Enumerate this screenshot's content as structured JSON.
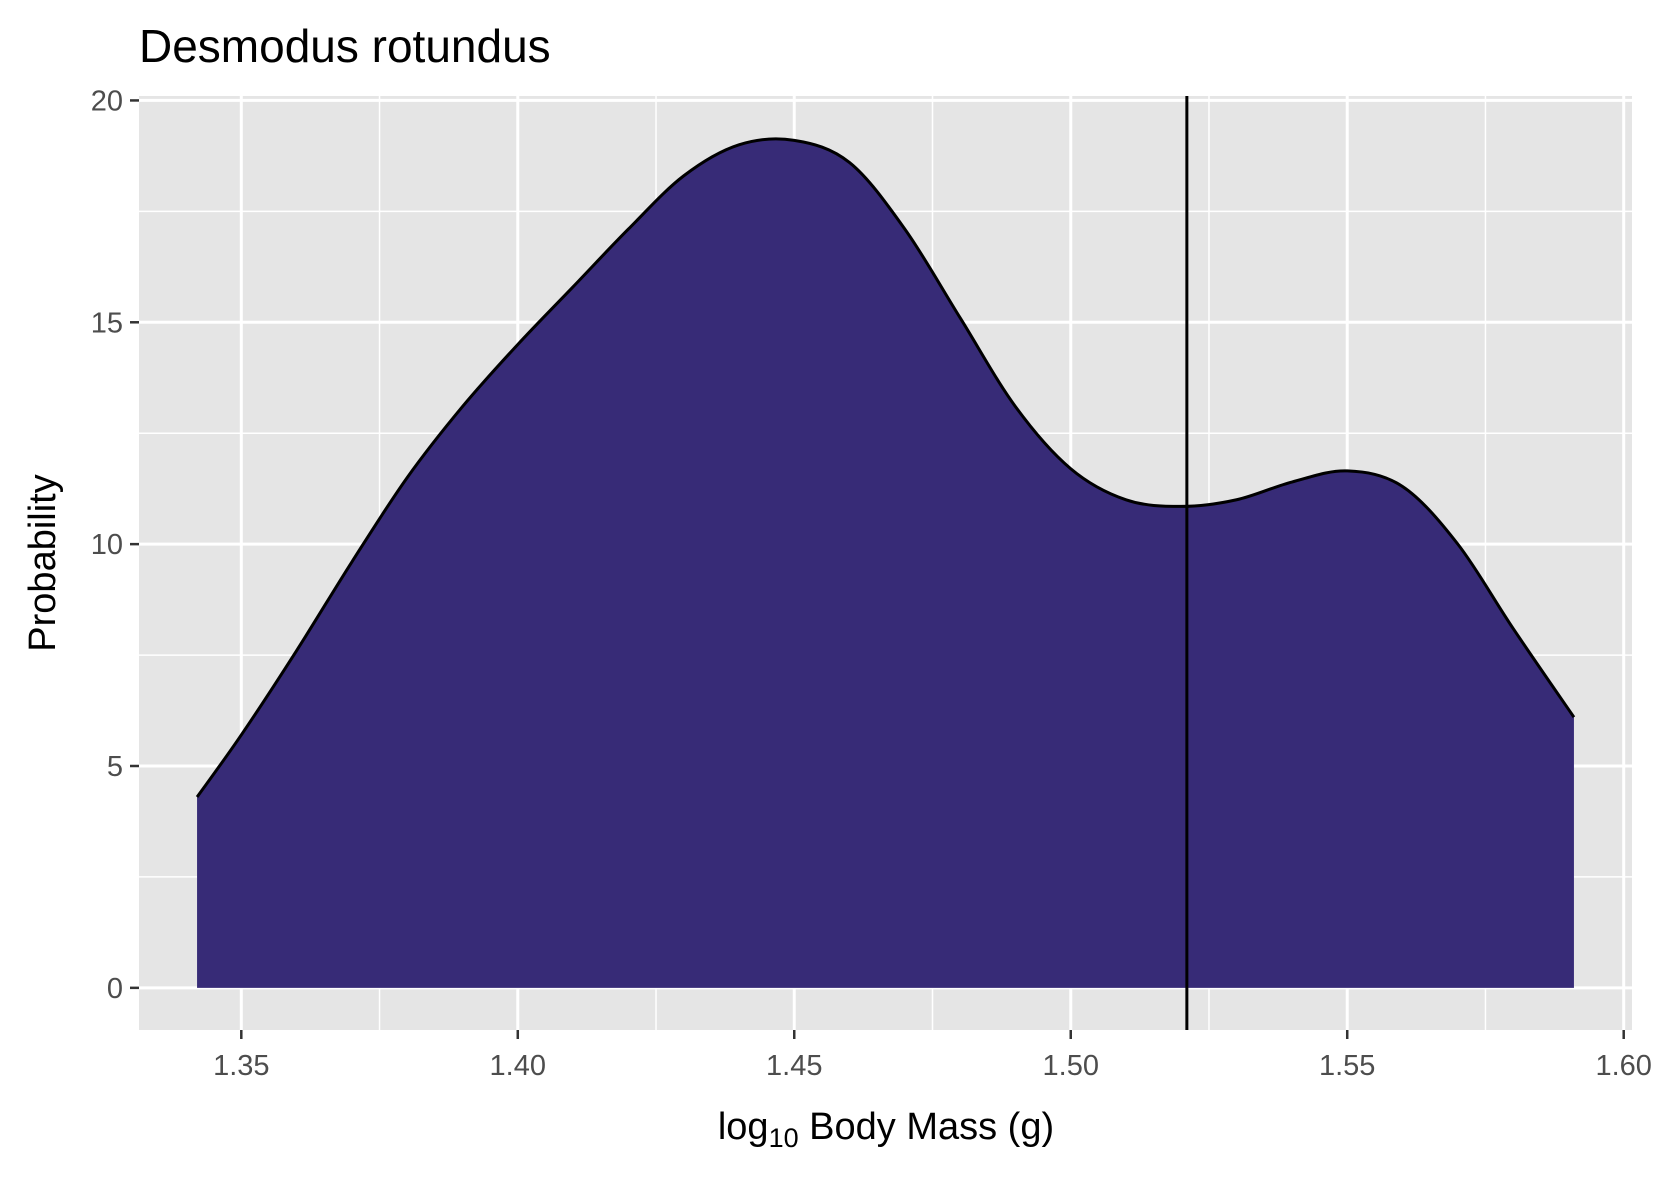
{
  "chart_data": {
    "type": "area",
    "title": "Desmodus rotundus",
    "xlabel": {
      "prefix": "log",
      "subscript": "10",
      "suffix": " Body Mass (g)"
    },
    "ylabel": "Probability",
    "xlim": [
      1.3315,
      1.6015
    ],
    "ylim": [
      -0.95,
      20.1
    ],
    "x_ticks": [
      1.35,
      1.4,
      1.45,
      1.5,
      1.55,
      1.6
    ],
    "x_tick_labels": [
      "1.35",
      "1.40",
      "1.45",
      "1.50",
      "1.55",
      "1.60"
    ],
    "y_ticks": [
      0,
      5,
      10,
      15,
      20
    ],
    "y_tick_labels": [
      "0",
      "5",
      "10",
      "15",
      "20"
    ],
    "grid": true,
    "vline_x": 1.521,
    "density": {
      "x": [
        1.342,
        1.35,
        1.36,
        1.37,
        1.38,
        1.39,
        1.4,
        1.41,
        1.42,
        1.43,
        1.44,
        1.45,
        1.46,
        1.47,
        1.48,
        1.49,
        1.5,
        1.51,
        1.52,
        1.53,
        1.54,
        1.55,
        1.56,
        1.57,
        1.58,
        1.591
      ],
      "y": [
        4.3,
        5.7,
        7.6,
        9.6,
        11.5,
        13.1,
        14.5,
        15.8,
        17.1,
        18.3,
        19.0,
        19.1,
        18.6,
        17.1,
        15.1,
        13.1,
        11.7,
        11.0,
        10.85,
        11.0,
        11.4,
        11.65,
        11.3,
        10.0,
        8.1,
        6.1
      ]
    },
    "colors": {
      "fill": "#372B77",
      "line": "#000000",
      "panel": "#E5E5E5",
      "grid": "#FFFFFF"
    }
  }
}
